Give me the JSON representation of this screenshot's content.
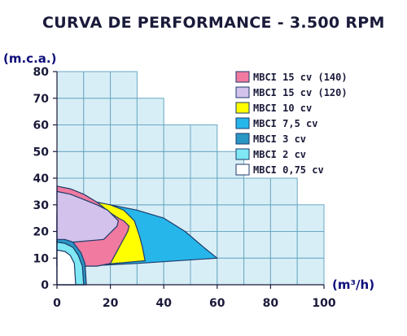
{
  "chart_data": {
    "type": "area",
    "title": "CURVA DE PERFORMANCE - 3.500 RPM",
    "ylabel": "(m.c.a.)",
    "xlabel": "(m³/h)",
    "xlim": [
      0,
      100
    ],
    "ylim": [
      0,
      80
    ],
    "x_ticks": [
      0,
      20,
      40,
      60,
      80,
      100
    ],
    "y_ticks": [
      0,
      10,
      20,
      30,
      40,
      50,
      60,
      70,
      80
    ],
    "grid": true,
    "legend_position": "top-right",
    "series": [
      {
        "name": "MBCI 15 cv (140)",
        "color": "#f07aa0",
        "points": [
          [
            0,
            37
          ],
          [
            5,
            36
          ],
          [
            10,
            34
          ],
          [
            15,
            31
          ],
          [
            20,
            27
          ],
          [
            23,
            25
          ],
          [
            25,
            24
          ],
          [
            27,
            22
          ],
          [
            26.5,
            20
          ],
          [
            20,
            8
          ],
          [
            15,
            7
          ],
          [
            6,
            7
          ],
          [
            0,
            7
          ]
        ]
      },
      {
        "name": "MBCI 15 cv (120)",
        "color": "#d2c2ec",
        "points": [
          [
            0,
            35
          ],
          [
            5,
            34
          ],
          [
            10,
            32
          ],
          [
            15,
            30
          ],
          [
            19,
            28
          ],
          [
            21,
            26
          ],
          [
            23,
            24
          ],
          [
            22.5,
            22
          ],
          [
            17.5,
            17
          ],
          [
            6,
            16
          ],
          [
            0,
            15
          ]
        ]
      },
      {
        "name": "MBCI 10 cv",
        "color": "#ffff00",
        "points": [
          [
            0,
            27
          ],
          [
            10,
            31
          ],
          [
            15,
            31
          ],
          [
            20,
            30
          ],
          [
            25,
            28
          ],
          [
            29,
            24
          ],
          [
            31,
            18
          ],
          [
            32,
            14
          ],
          [
            33,
            9
          ],
          [
            10,
            7
          ],
          [
            0,
            7
          ]
        ]
      },
      {
        "name": "MBCI 7,5 cv",
        "color": "#26b6ea",
        "points": [
          [
            0,
            26
          ],
          [
            10,
            31
          ],
          [
            20,
            30
          ],
          [
            30,
            28
          ],
          [
            40,
            25
          ],
          [
            48,
            20
          ],
          [
            55,
            14
          ],
          [
            60,
            10
          ],
          [
            30,
            8
          ],
          [
            10,
            7
          ],
          [
            0,
            7
          ]
        ]
      },
      {
        "name": "MBCI 3 cv",
        "color": "#2a96c4",
        "points": [
          [
            0,
            17
          ],
          [
            3,
            17
          ],
          [
            6,
            16
          ],
          [
            9,
            12
          ],
          [
            10.5,
            8
          ],
          [
            11,
            0
          ],
          [
            0,
            0
          ]
        ]
      },
      {
        "name": "MBCI 2 cv",
        "color": "#7fe8f4",
        "points": [
          [
            0,
            16
          ],
          [
            3,
            15.5
          ],
          [
            6,
            14
          ],
          [
            8,
            11
          ],
          [
            9.5,
            7
          ],
          [
            10,
            0
          ],
          [
            0,
            0
          ]
        ]
      },
      {
        "name": "MBCI 0,75 cv",
        "color": "#ffffff",
        "points": [
          [
            0,
            13
          ],
          [
            3,
            12.5
          ],
          [
            5,
            11
          ],
          [
            6.5,
            8
          ],
          [
            7,
            0
          ],
          [
            0,
            0
          ]
        ]
      }
    ],
    "background_steps": [
      [
        0,
        80
      ],
      [
        20,
        80
      ],
      [
        30,
        70
      ],
      [
        40,
        60
      ],
      [
        60,
        50
      ],
      [
        70,
        40
      ],
      [
        90,
        30
      ],
      [
        100,
        20
      ]
    ]
  }
}
